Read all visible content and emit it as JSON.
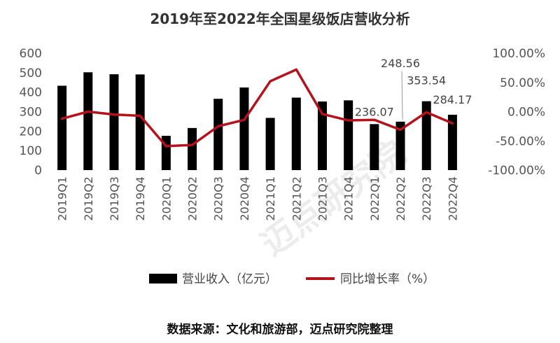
{
  "chart_data": {
    "type": "bar+line",
    "title": "2019年至2022年全国星级饭店营收分析",
    "categories": [
      "2019Q1",
      "2019Q2",
      "2019Q3",
      "2019Q4",
      "2020Q1",
      "2020Q2",
      "2020Q3",
      "2020Q4",
      "2021Q1",
      "2021Q2",
      "2021Q3",
      "2021Q4",
      "2022Q1",
      "2022Q2",
      "2022Q3",
      "2022Q4"
    ],
    "series": [
      {
        "name": "营业收入（亿元）",
        "type": "bar",
        "axis": "left",
        "color": "#000000",
        "values": [
          433,
          502,
          492,
          491,
          176,
          216,
          366,
          424,
          268,
          372,
          352,
          358,
          236.07,
          248.56,
          353.54,
          284.17
        ]
      },
      {
        "name": "同比增长率（%）",
        "type": "line",
        "axis": "right",
        "color": "#b5121b",
        "values": [
          -0.12,
          0.0,
          -0.05,
          -0.07,
          -0.59,
          -0.57,
          -0.25,
          -0.14,
          0.52,
          0.72,
          -0.04,
          -0.15,
          -0.14,
          -0.31,
          -0.01,
          -0.2
        ]
      }
    ],
    "data_labels": [
      {
        "index": 12,
        "text": "236.07"
      },
      {
        "index": 13,
        "text": "248.56"
      },
      {
        "index": 14,
        "text": "353.54"
      },
      {
        "index": 15,
        "text": "284.17"
      }
    ],
    "yleft": {
      "min": 0,
      "max": 600,
      "ticks": [
        "0",
        "100",
        "200",
        "300",
        "400",
        "500",
        "600"
      ]
    },
    "yright": {
      "min": -1.0,
      "max": 1.0,
      "ticks": [
        "-100.00%",
        "-50.00%",
        "0.00%",
        "50.00%",
        "100.00%"
      ]
    },
    "grid": false,
    "legend_position": "bottom"
  },
  "source_text": "数据来源：文化和旅游部，迈点研究院整理",
  "watermark_text": "迈点研究院"
}
